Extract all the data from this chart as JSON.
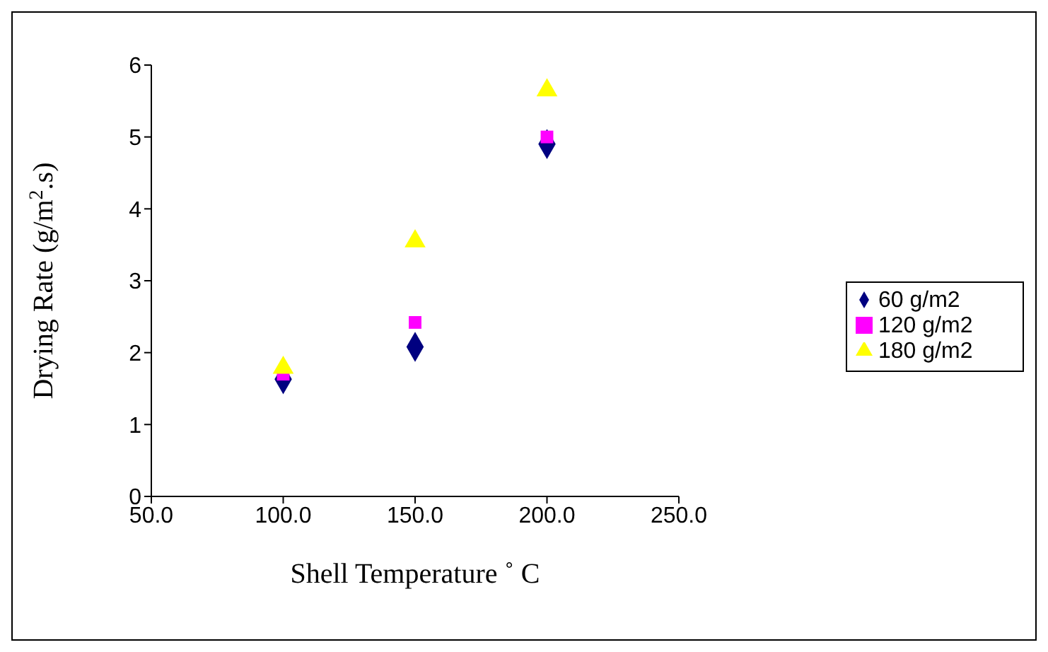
{
  "chart_data": {
    "type": "scatter",
    "xlabel": "Shell Temperature ˚ C",
    "ylabel": "Drying Rate (g/m$^{2}$.s)",
    "x": [
      100,
      150,
      200
    ],
    "series": [
      {
        "name": "60 g/m2",
        "color": "#000080",
        "marker": "diamond",
        "values": [
          1.63,
          2.08,
          4.9
        ]
      },
      {
        "name": "120 g/m2",
        "color": "#ff00ff",
        "marker": "square",
        "values": [
          1.7,
          2.42,
          5.0
        ]
      },
      {
        "name": "180 g/m2",
        "color": "#ffff00",
        "marker": "triangle",
        "values": [
          1.79,
          3.55,
          5.65
        ]
      }
    ],
    "xlim": [
      50,
      250
    ],
    "xticks": [
      {
        "value": 50,
        "label": "50.0"
      },
      {
        "value": 100,
        "label": "100.0"
      },
      {
        "value": 150,
        "label": "150.0"
      },
      {
        "value": 200,
        "label": "200.0"
      },
      {
        "value": 250,
        "label": "250.0"
      }
    ],
    "ylim": [
      0,
      6
    ],
    "yticks": [
      0,
      1,
      2,
      3,
      4,
      5,
      6
    ],
    "grid": false,
    "legend": "right"
  }
}
